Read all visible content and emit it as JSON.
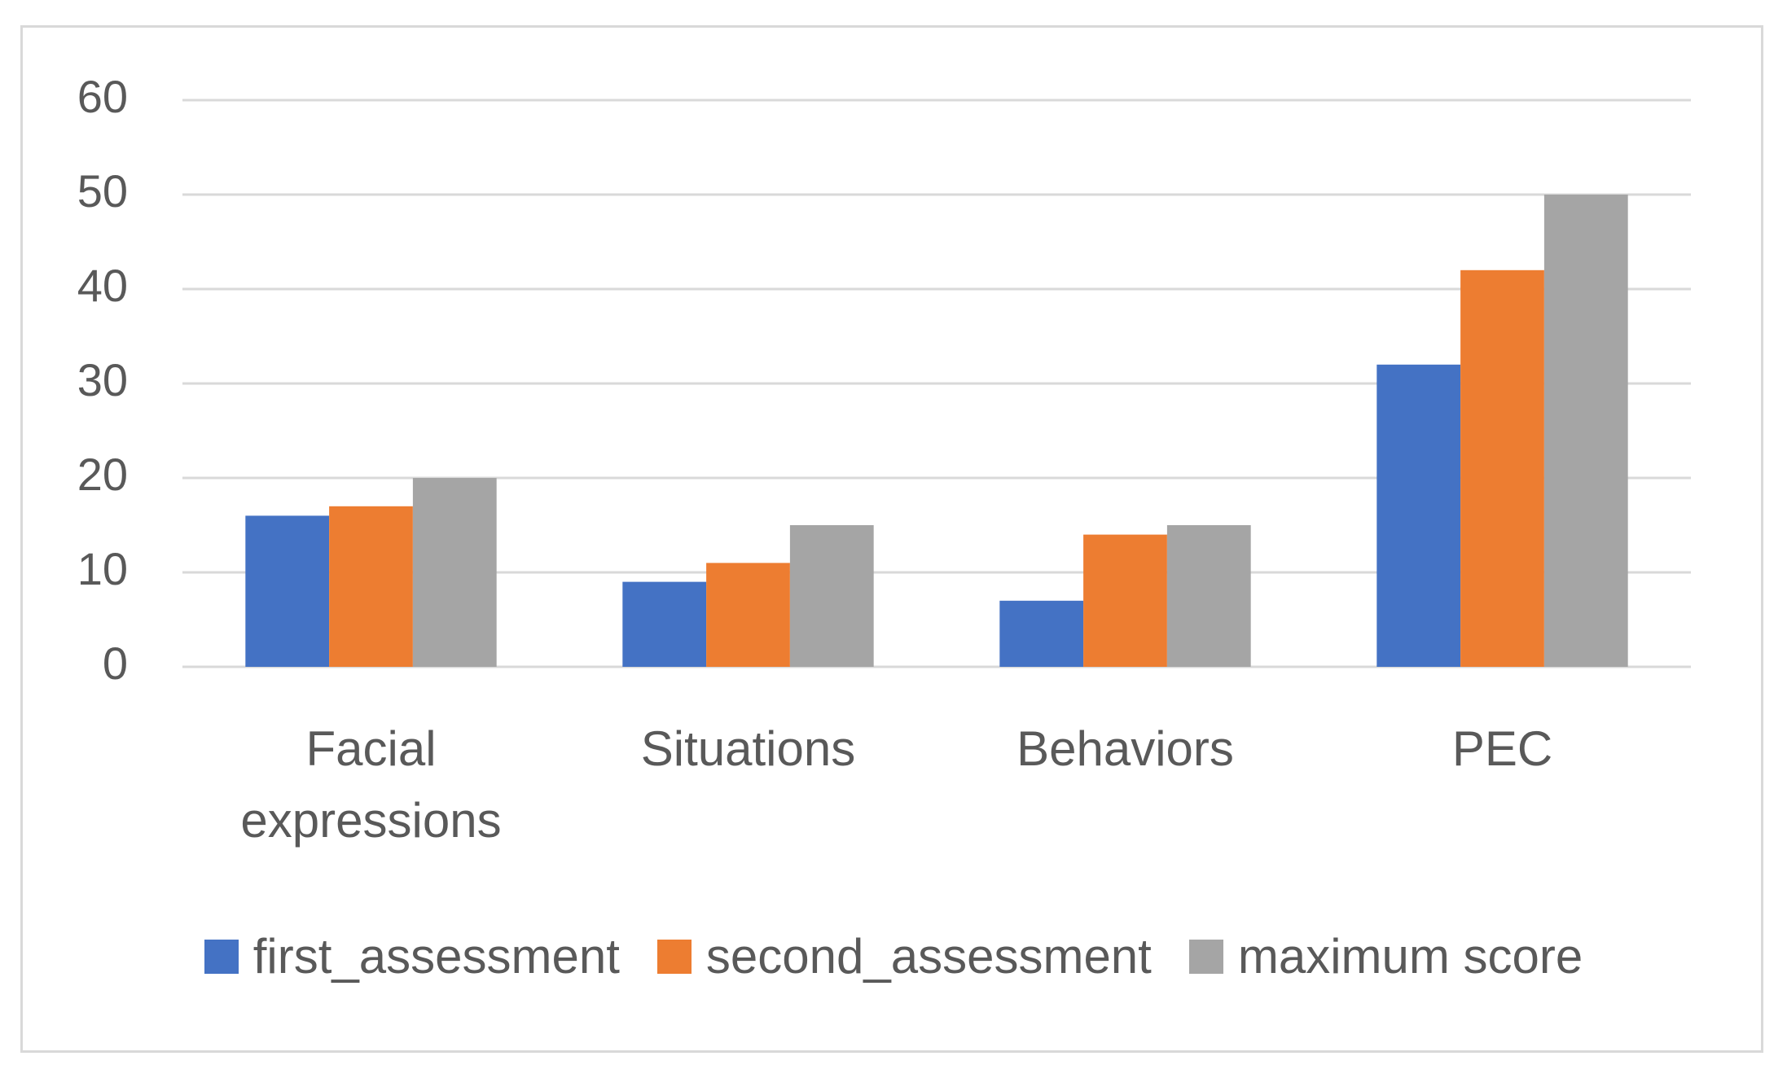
{
  "chart_data": {
    "type": "bar",
    "categories": [
      "Facial expressions",
      "Situations",
      "Behaviors",
      "PEC"
    ],
    "series": [
      {
        "name": "first_assessment",
        "color": "#4472c4",
        "values": [
          16,
          9,
          7,
          32
        ]
      },
      {
        "name": "second_assessment",
        "color": "#ed7d31",
        "values": [
          17,
          11,
          14,
          42
        ]
      },
      {
        "name": "maximum score",
        "color": "#a5a5a5",
        "values": [
          20,
          15,
          15,
          50
        ]
      }
    ],
    "ylim": [
      0,
      60
    ],
    "yticks": [
      0,
      10,
      20,
      30,
      40,
      50,
      60
    ],
    "grid": true,
    "legend": "bottom"
  }
}
